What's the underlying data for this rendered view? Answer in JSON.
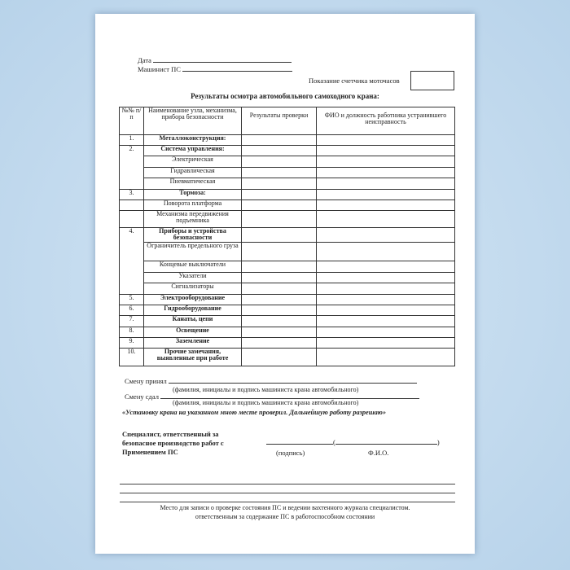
{
  "header": {
    "date_label": "Дата",
    "operator_label": "Машинист ПС",
    "meter_label": "Показание счетчика  моточасов",
    "title": "Результаты осмотра автомобильного самоходного крана:"
  },
  "table": {
    "columns": [
      "№№ п/п",
      "Наименование узла, механизма, прибора безопасности",
      "Результаты проверки",
      "ФИО и должность работника устранившего неисправность"
    ],
    "rows": [
      {
        "num": "1.",
        "label": "Металлоконструкция:",
        "bold": true
      },
      {
        "num": "2.",
        "label": "Система управления:",
        "bold": true,
        "span": 4
      },
      {
        "label": "Электрическая",
        "merged": true
      },
      {
        "label": "Гидравлическая",
        "merged": true
      },
      {
        "label": "Пневматическая",
        "merged": true
      },
      {
        "num": "3.",
        "label": "Тормоза:",
        "bold": true
      },
      {
        "num": "",
        "label": "Поворота платформа"
      },
      {
        "num": "",
        "label": "Механизма передвижения подъемника"
      },
      {
        "num": "4.",
        "label": "Приборы и устройства безопасности",
        "bold": true,
        "span": 5
      },
      {
        "label": "Ограничитель предельного груза",
        "merged": true
      },
      {
        "label": "Концевые выключатели",
        "merged": true
      },
      {
        "label": "Указатели",
        "merged": true
      },
      {
        "label": "Сигнализаторы",
        "merged": true
      },
      {
        "num": "5.",
        "label": "Электрооборудование",
        "bold": true
      },
      {
        "num": "6.",
        "label": "Гидрооборудование",
        "bold": true
      },
      {
        "num": "7.",
        "label": "Канаты, цепи",
        "bold": true
      },
      {
        "num": "8.",
        "label": "Освещение",
        "bold": true
      },
      {
        "num": "9.",
        "label": "Заземление",
        "bold": true
      },
      {
        "num": "10.",
        "label": "Прочие замечания, выявленные при работе",
        "bold": true
      }
    ]
  },
  "shift": {
    "accepted_label": "Смену принял",
    "handed_label": "Смену сдал",
    "caption": "(фамилия, инициалы и подпись машиниста крана автомобильного)",
    "approval": "«Установку крана на указанном мною месте проверил. Дальнейшую работу разрешаю»"
  },
  "specialist": {
    "line1": "Специалист,  ответственный за",
    "line2": "безопасное производство работ с",
    "line3": "Применением ПС",
    "signature_caption": "(подпись)",
    "name_caption": "Ф.И.О."
  },
  "footer": {
    "line1": "Место для записи о проверке состояния ПС и ведении вахтенного журнала специалистом.",
    "line2": "ответственным за содержание ПС в работоспособном состоянии"
  }
}
